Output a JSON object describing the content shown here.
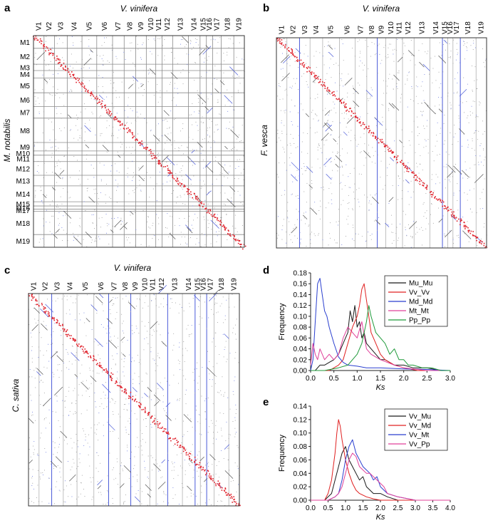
{
  "panels": {
    "a": {
      "letter": "a",
      "title": "V. vinifera",
      "ylabel": "M. notabilis",
      "col_labels": [
        "V1",
        "V2",
        "V3",
        "V4",
        "V5",
        "V6",
        "V7",
        "V8",
        "V9",
        "V10",
        "V11",
        "V12",
        "V13",
        "V14",
        "V15",
        "V16",
        "V17",
        "V18",
        "V19"
      ],
      "row_labels": [
        "M1",
        "M2",
        "M3",
        "M4",
        "M5",
        "M6",
        "M7",
        "M8",
        "M9",
        "M10",
        "M11",
        "M12",
        "M13",
        "M14",
        "M15",
        "M16",
        "M17",
        "M18",
        "M19"
      ]
    },
    "b": {
      "letter": "b",
      "title": "V. vinifera",
      "ylabel": "F. vesca",
      "col_labels": [
        "V1",
        "V2",
        "V3",
        "V4",
        "V5",
        "V6",
        "V7",
        "V8",
        "V9",
        "V10",
        "V11",
        "V12",
        "V13",
        "V14",
        "V15",
        "V16",
        "V17",
        "V18",
        "V19"
      ]
    },
    "c": {
      "letter": "c",
      "title": "V. vinifera",
      "ylabel": "C. sativa",
      "col_labels": [
        "V1",
        "V2",
        "V3",
        "V4",
        "V5",
        "V6",
        "V7",
        "V8",
        "V9",
        "V10",
        "V11",
        "V12",
        "V13",
        "V14",
        "V15",
        "V16",
        "V17",
        "V18",
        "V19"
      ]
    },
    "d": {
      "letter": "d"
    },
    "e": {
      "letter": "e"
    }
  },
  "chart_data": [
    {
      "panel": "d",
      "type": "line",
      "xlabel": "Ks",
      "ylabel": "Frequency",
      "xlim": [
        0,
        3.0
      ],
      "ylim": [
        0,
        0.18
      ],
      "xticks": [
        "0.0",
        "0.5",
        "1.0",
        "1.5",
        "2.0",
        "2.5",
        "3.0"
      ],
      "yticks": [
        "0.00",
        "0.02",
        "0.04",
        "0.06",
        "0.08",
        "0.10",
        "0.12",
        "0.14",
        "0.16",
        "0.18"
      ],
      "legend_position": "top-right",
      "series": [
        {
          "name": "Mu_Mu",
          "color": "#1a1a1a",
          "x": [
            0,
            0.1,
            0.2,
            0.3,
            0.4,
            0.5,
            0.6,
            0.7,
            0.8,
            0.85,
            0.9,
            0.95,
            1.0,
            1.05,
            1.1,
            1.15,
            1.2,
            1.3,
            1.4,
            1.5,
            1.6,
            1.8,
            2.0,
            2.2,
            2.5,
            2.8,
            3.0
          ],
          "y": [
            0.0,
            0.0,
            0.01,
            0.01,
            0.015,
            0.02,
            0.03,
            0.05,
            0.07,
            0.11,
            0.09,
            0.12,
            0.08,
            0.09,
            0.06,
            0.07,
            0.05,
            0.04,
            0.03,
            0.02,
            0.02,
            0.01,
            0.01,
            0.005,
            0.005,
            0.0,
            0.0
          ]
        },
        {
          "name": "Vv_Vv",
          "color": "#e02020",
          "x": [
            0,
            0.2,
            0.4,
            0.6,
            0.7,
            0.8,
            0.9,
            1.0,
            1.05,
            1.1,
            1.15,
            1.2,
            1.25,
            1.3,
            1.4,
            1.5,
            1.6,
            1.8,
            2.0,
            2.3,
            2.6,
            3.0
          ],
          "y": [
            0.0,
            0.0,
            0.0,
            0.01,
            0.02,
            0.05,
            0.08,
            0.1,
            0.12,
            0.15,
            0.16,
            0.13,
            0.1,
            0.07,
            0.05,
            0.03,
            0.02,
            0.01,
            0.005,
            0.0,
            0.0,
            0.0
          ]
        },
        {
          "name": "Md_Md",
          "color": "#2a3fcf",
          "x": [
            0,
            0.05,
            0.1,
            0.15,
            0.2,
            0.25,
            0.3,
            0.35,
            0.4,
            0.5,
            0.6,
            0.7,
            0.8,
            1.0,
            1.2,
            1.5,
            2.0,
            2.5,
            3.0
          ],
          "y": [
            0.0,
            0.02,
            0.09,
            0.16,
            0.17,
            0.14,
            0.11,
            0.1,
            0.08,
            0.05,
            0.025,
            0.015,
            0.01,
            0.008,
            0.005,
            0.005,
            0.003,
            0.002,
            0.0
          ]
        },
        {
          "name": "Mt_Mt",
          "color": "#e0409a",
          "x": [
            0,
            0.05,
            0.1,
            0.15,
            0.2,
            0.3,
            0.4,
            0.5,
            0.6,
            0.7,
            0.8,
            0.9,
            1.0,
            1.1,
            1.2,
            1.3,
            1.5,
            1.8,
            2.0,
            2.5,
            3.0
          ],
          "y": [
            0.01,
            0.05,
            0.03,
            0.02,
            0.04,
            0.02,
            0.03,
            0.02,
            0.03,
            0.06,
            0.08,
            0.07,
            0.06,
            0.09,
            0.04,
            0.03,
            0.02,
            0.01,
            0.005,
            0.0,
            0.0
          ]
        },
        {
          "name": "Pp_Pp",
          "color": "#1f9a3a",
          "x": [
            0,
            0.3,
            0.6,
            0.8,
            1.0,
            1.1,
            1.2,
            1.25,
            1.3,
            1.4,
            1.5,
            1.6,
            1.7,
            1.8,
            1.9,
            2.0,
            2.1,
            2.2,
            2.4,
            2.6,
            2.8,
            3.0
          ],
          "y": [
            0.0,
            0.0,
            0.005,
            0.01,
            0.03,
            0.05,
            0.09,
            0.12,
            0.1,
            0.07,
            0.06,
            0.05,
            0.03,
            0.04,
            0.02,
            0.02,
            0.01,
            0.01,
            0.005,
            0.005,
            0.0,
            0.0
          ]
        }
      ]
    },
    {
      "panel": "e",
      "type": "line",
      "xlabel": "Ks",
      "ylabel": "Frequency",
      "xlim": [
        0,
        4.0
      ],
      "ylim": [
        0,
        0.14
      ],
      "xticks": [
        "0.0",
        "0.5",
        "1.0",
        "1.5",
        "2.0",
        "2.5",
        "3.0",
        "3.5",
        "4.0"
      ],
      "yticks": [
        "0.00",
        "0.02",
        "0.04",
        "0.06",
        "0.08",
        "0.10",
        "0.12",
        "0.14"
      ],
      "legend_position": "top-right",
      "series": [
        {
          "name": "Vv_Mu",
          "color": "#1a1a1a",
          "x": [
            0,
            0.4,
            0.6,
            0.7,
            0.8,
            0.9,
            1.0,
            1.05,
            1.1,
            1.2,
            1.3,
            1.4,
            1.5,
            1.6,
            1.8,
            2.0,
            2.2,
            2.5,
            3.0,
            4.0
          ],
          "y": [
            0.0,
            0.0,
            0.01,
            0.03,
            0.05,
            0.07,
            0.08,
            0.07,
            0.06,
            0.05,
            0.04,
            0.03,
            0.035,
            0.02,
            0.01,
            0.01,
            0.005,
            0.0,
            0.0,
            0.0
          ]
        },
        {
          "name": "Vv_Md",
          "color": "#e02020",
          "x": [
            0,
            0.4,
            0.5,
            0.6,
            0.7,
            0.75,
            0.8,
            0.85,
            0.9,
            1.0,
            1.1,
            1.2,
            1.3,
            1.4,
            1.6,
            1.8,
            2.0,
            2.5,
            4.0
          ],
          "y": [
            0.0,
            0.0,
            0.01,
            0.03,
            0.07,
            0.1,
            0.12,
            0.11,
            0.09,
            0.06,
            0.04,
            0.025,
            0.015,
            0.01,
            0.005,
            0.002,
            0.0,
            0.0,
            0.0
          ]
        },
        {
          "name": "Vv_Mt",
          "color": "#2a3fcf",
          "x": [
            0,
            0.5,
            0.7,
            0.8,
            0.9,
            1.0,
            1.1,
            1.2,
            1.3,
            1.4,
            1.5,
            1.6,
            1.7,
            1.8,
            1.9,
            2.0,
            2.2,
            2.5,
            3.0,
            4.0
          ],
          "y": [
            0.0,
            0.0,
            0.005,
            0.01,
            0.03,
            0.06,
            0.08,
            0.09,
            0.07,
            0.06,
            0.05,
            0.045,
            0.04,
            0.03,
            0.035,
            0.02,
            0.01,
            0.005,
            0.0,
            0.0
          ]
        },
        {
          "name": "Vv_Pp",
          "color": "#e0409a",
          "x": [
            0,
            0.5,
            0.7,
            0.8,
            0.9,
            1.0,
            1.1,
            1.2,
            1.3,
            1.4,
            1.5,
            1.6,
            1.7,
            1.8,
            1.9,
            2.0,
            2.1,
            2.2,
            2.5,
            3.0,
            4.0
          ],
          "y": [
            0.0,
            0.0,
            0.005,
            0.01,
            0.02,
            0.04,
            0.06,
            0.07,
            0.065,
            0.05,
            0.045,
            0.04,
            0.04,
            0.035,
            0.03,
            0.025,
            0.02,
            0.01,
            0.005,
            0.0,
            0.0
          ]
        }
      ]
    }
  ]
}
